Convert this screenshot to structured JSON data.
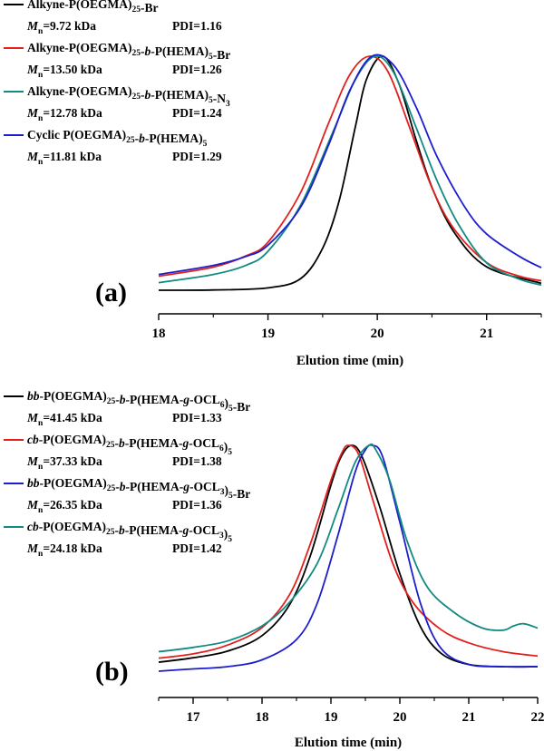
{
  "chart_data": [
    {
      "type": "line",
      "panel_label": "(a)",
      "xlabel": "Elution time (min)",
      "ylabel": "",
      "xlim": [
        18,
        21.5
      ],
      "x_ticks": [
        18,
        19,
        20,
        21
      ],
      "legend_position": "top-left",
      "series": [
        {
          "name": "Alkyne-P(OEGMA)25-Br",
          "name_parts": [
            [
              "Alkyne-P(OEGMA)",
              "n"
            ],
            [
              "25",
              "sub"
            ],
            [
              "-Br",
              "n"
            ]
          ],
          "mn": "=9.72 kDa",
          "pdi": "PDI=1.16",
          "color": "#000000",
          "x": [
            18.0,
            18.5,
            19.0,
            19.3,
            19.5,
            19.65,
            19.8,
            19.9,
            20.05,
            20.2,
            20.35,
            20.5,
            20.7,
            21.0,
            21.5
          ],
          "y": [
            0.0,
            0.001,
            0.01,
            0.05,
            0.18,
            0.38,
            0.7,
            0.9,
            1.0,
            0.88,
            0.65,
            0.44,
            0.25,
            0.1,
            0.03
          ]
        },
        {
          "name": "Alkyne-P(OEGMA)25-b-P(HEMA)5-Br",
          "name_parts": [
            [
              "Alkyne-P(OEGMA)",
              "n"
            ],
            [
              "25",
              "sub"
            ],
            [
              "-",
              "n"
            ],
            [
              "b",
              "i"
            ],
            [
              "-P(HEMA)",
              "n"
            ],
            [
              "5",
              "sub"
            ],
            [
              "-Br",
              "n"
            ]
          ],
          "mn": "=13.50 kDa",
          "pdi": "PDI=1.26",
          "color": "#e0211e",
          "x": [
            18.0,
            18.5,
            18.8,
            19.0,
            19.3,
            19.55,
            19.75,
            19.93,
            20.1,
            20.3,
            20.5,
            20.7,
            21.0,
            21.3,
            21.5
          ],
          "y": [
            0.03,
            0.07,
            0.12,
            0.18,
            0.4,
            0.7,
            0.92,
            1.0,
            0.93,
            0.68,
            0.42,
            0.24,
            0.09,
            0.03,
            0.01
          ]
        },
        {
          "name": "Alkyne-P(OEGMA)25-b-P(HEMA)5-N3",
          "name_parts": [
            [
              "Alkyne-P(OEGMA)",
              "n"
            ],
            [
              "25",
              "sub"
            ],
            [
              "-",
              "n"
            ],
            [
              "b",
              "i"
            ],
            [
              "-P(HEMA)",
              "n"
            ],
            [
              "5",
              "sub"
            ],
            [
              "-N",
              "n"
            ],
            [
              "3",
              "sub"
            ]
          ],
          "mn": "=12.78 kDa",
          "pdi": "PDI=1.24",
          "color": "#128a82",
          "x": [
            18.0,
            18.5,
            18.8,
            19.0,
            19.3,
            19.6,
            19.8,
            19.98,
            20.15,
            20.35,
            20.55,
            20.75,
            21.0,
            21.3,
            21.5
          ],
          "y": [
            0.025,
            0.06,
            0.1,
            0.16,
            0.36,
            0.68,
            0.9,
            1.0,
            0.93,
            0.7,
            0.46,
            0.27,
            0.11,
            0.04,
            0.015
          ]
        },
        {
          "name": "Cyclic P(OEGMA)25-b-P(HEMA)5",
          "name_parts": [
            [
              "Cyclic P(OEGMA)",
              "n"
            ],
            [
              "25",
              "sub"
            ],
            [
              "-",
              "n"
            ],
            [
              "b",
              "i"
            ],
            [
              "-P(HEMA)",
              "n"
            ],
            [
              "5",
              "sub"
            ]
          ],
          "mn": "=11.81 kDa",
          "pdi": "PDI=1.29",
          "color": "#1d1dcc",
          "x": [
            18.0,
            18.5,
            18.8,
            19.0,
            19.3,
            19.55,
            19.75,
            19.95,
            20.15,
            20.35,
            20.55,
            20.8,
            21.0,
            21.3,
            21.5
          ],
          "y": [
            0.03,
            0.07,
            0.11,
            0.16,
            0.33,
            0.6,
            0.85,
            1.0,
            0.96,
            0.78,
            0.55,
            0.33,
            0.21,
            0.11,
            0.06
          ]
        }
      ]
    },
    {
      "type": "line",
      "panel_label": "(b)",
      "xlabel": "Elution time (min)",
      "ylabel": "",
      "xlim": [
        16.5,
        22
      ],
      "x_ticks": [
        17,
        18,
        19,
        20,
        21,
        22
      ],
      "legend_position": "top-left",
      "series": [
        {
          "name": "bb-P(OEGMA)25-b-P(HEMA-g-OCL6)5-Br",
          "name_parts": [
            [
              "bb",
              "i"
            ],
            [
              "-P(OEGMA)",
              "n"
            ],
            [
              "25",
              "sub"
            ],
            [
              "-",
              "n"
            ],
            [
              "b",
              "i"
            ],
            [
              "-P(HEMA-",
              "n"
            ],
            [
              "g",
              "i"
            ],
            [
              "-OCL",
              "n"
            ],
            [
              "6",
              "sub"
            ],
            [
              ")",
              "n"
            ],
            [
              "5",
              "sub"
            ],
            [
              "-Br",
              "n"
            ]
          ],
          "mn": "=41.45 kDa",
          "pdi": "PDI=1.33",
          "color": "#000000",
          "x": [
            16.5,
            17.0,
            17.5,
            18.0,
            18.4,
            18.7,
            19.0,
            19.15,
            19.3,
            19.45,
            19.7,
            20.0,
            20.3,
            20.6,
            21.0,
            21.5,
            22.0
          ],
          "y": [
            0.02,
            0.04,
            0.07,
            0.14,
            0.28,
            0.5,
            0.82,
            0.95,
            1.0,
            0.95,
            0.73,
            0.42,
            0.18,
            0.06,
            0.01,
            0.0,
            0.0
          ]
        },
        {
          "name": "cb-P(OEGMA)25-b-P(HEMA-g-OCL6)5",
          "name_parts": [
            [
              "cb",
              "i"
            ],
            [
              "-P(OEGMA)",
              "n"
            ],
            [
              "25",
              "sub"
            ],
            [
              "-",
              "n"
            ],
            [
              "b",
              "i"
            ],
            [
              "-P(HEMA-",
              "n"
            ],
            [
              "g",
              "i"
            ],
            [
              "-OCL",
              "n"
            ],
            [
              "6",
              "sub"
            ],
            [
              ")",
              "n"
            ],
            [
              "5",
              "sub"
            ]
          ],
          "mn": "=37.33 kDa",
          "pdi": "PDI=1.38",
          "color": "#e0211e",
          "x": [
            16.5,
            17.0,
            17.5,
            18.0,
            18.4,
            18.7,
            19.0,
            19.15,
            19.25,
            19.4,
            19.6,
            19.9,
            20.2,
            20.6,
            21.0,
            21.5,
            22.0
          ],
          "y": [
            0.03,
            0.05,
            0.09,
            0.17,
            0.32,
            0.55,
            0.84,
            0.96,
            1.0,
            0.96,
            0.76,
            0.46,
            0.28,
            0.16,
            0.1,
            0.06,
            0.04
          ]
        },
        {
          "name": "bb-P(OEGMA)25-b-P(HEMA-g-OCL3)5-Br",
          "name_parts": [
            [
              "bb",
              "i"
            ],
            [
              "-P(OEGMA)",
              "n"
            ],
            [
              "25",
              "sub"
            ],
            [
              "-",
              "n"
            ],
            [
              "b",
              "i"
            ],
            [
              "-P(HEMA-",
              "n"
            ],
            [
              "g",
              "i"
            ],
            [
              "-OCL",
              "n"
            ],
            [
              "3",
              "sub"
            ],
            [
              ")",
              "n"
            ],
            [
              "5",
              "sub"
            ],
            [
              "-Br",
              "n"
            ]
          ],
          "mn": "=26.35 kDa",
          "pdi": "PDI=1.36",
          "color": "#1d1dcc",
          "x": [
            16.5,
            17.0,
            17.5,
            18.0,
            18.5,
            18.8,
            19.1,
            19.35,
            19.5,
            19.6,
            19.75,
            20.0,
            20.3,
            20.6,
            21.0,
            21.5,
            22.0
          ],
          "y": [
            0.0,
            0.01,
            0.02,
            0.05,
            0.14,
            0.3,
            0.6,
            0.88,
            0.98,
            1.0,
            0.95,
            0.66,
            0.3,
            0.1,
            0.03,
            0.02,
            0.02
          ]
        },
        {
          "name": "cb-P(OEGMA)25-b-P(HEMA-g-OCL3)5",
          "name_parts": [
            [
              "cb",
              "i"
            ],
            [
              "-P(OEGMA)",
              "n"
            ],
            [
              "25",
              "sub"
            ],
            [
              "-",
              "n"
            ],
            [
              "b",
              "i"
            ],
            [
              "-P(HEMA-",
              "n"
            ],
            [
              "g",
              "i"
            ],
            [
              "-OCL",
              "n"
            ],
            [
              "3",
              "sub"
            ],
            [
              ")",
              "n"
            ],
            [
              "5",
              "sub"
            ]
          ],
          "mn": "=24.18 kDa",
          "pdi": "PDI=1.42",
          "color": "#128a82",
          "x": [
            16.5,
            17.0,
            17.5,
            18.0,
            18.4,
            18.8,
            19.1,
            19.35,
            19.55,
            19.65,
            19.85,
            20.1,
            20.4,
            20.8,
            21.2,
            21.5,
            21.65,
            21.8,
            22.0
          ],
          "y": [
            0.04,
            0.06,
            0.09,
            0.16,
            0.27,
            0.45,
            0.7,
            0.92,
            1.0,
            0.98,
            0.84,
            0.56,
            0.34,
            0.22,
            0.15,
            0.14,
            0.16,
            0.17,
            0.15
          ]
        }
      ]
    }
  ],
  "legend_labels": {
    "mn_symbol": "M",
    "mn_sub": "n"
  }
}
